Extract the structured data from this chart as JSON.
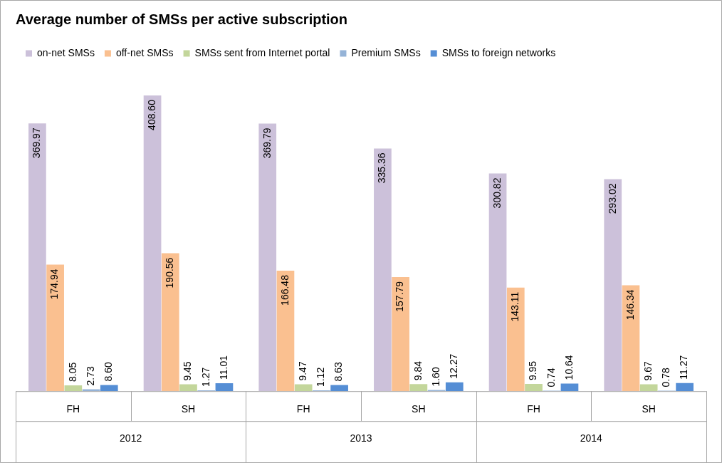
{
  "chart_data": {
    "type": "bar",
    "title": "Average number of SMSs per active subscription",
    "categories": [
      "FH",
      "SH",
      "FH",
      "SH",
      "FH",
      "SH"
    ],
    "series": [
      {
        "name": "on-net SMSs",
        "color": "#ccc1da",
        "values": [
          369.97,
          408.6,
          369.79,
          335.36,
          300.82,
          293.02
        ],
        "value_labels": [
          "369.97",
          "408.60",
          "369.79",
          "335.36",
          "300.82",
          "293.02"
        ]
      },
      {
        "name": "off-net SMSs",
        "color": "#fac090",
        "values": [
          174.94,
          190.56,
          166.48,
          157.79,
          143.11,
          146.34
        ],
        "value_labels": [
          "174.94",
          "190.56",
          "166.48",
          "157.79",
          "143.11",
          "146.34"
        ]
      },
      {
        "name": "SMSs sent from Internet portal",
        "color": "#c3d69b",
        "values": [
          8.05,
          9.45,
          9.47,
          9.84,
          9.95,
          9.67
        ],
        "value_labels": [
          "8.05",
          "9.45",
          "9.47",
          "9.84",
          "9.95",
          "9.67"
        ]
      },
      {
        "name": "Premium SMSs",
        "color": "#95b3d7",
        "values": [
          2.73,
          1.27,
          1.12,
          1.6,
          0.74,
          0.78
        ],
        "value_labels": [
          "2.73",
          "1.27",
          "1.12",
          "1.60",
          "0.74",
          "0.78"
        ]
      },
      {
        "name": "SMSs to foreign networks",
        "color": "#558ed5",
        "values": [
          8.6,
          11.01,
          8.63,
          12.27,
          10.64,
          11.27
        ],
        "value_labels": [
          "8.60",
          "11.01",
          "8.63",
          "12.27",
          "10.64",
          "11.27"
        ]
      }
    ],
    "annotations": [
      "2012",
      "2013",
      "2014"
    ],
    "grid": false,
    "legend": "top left"
  }
}
